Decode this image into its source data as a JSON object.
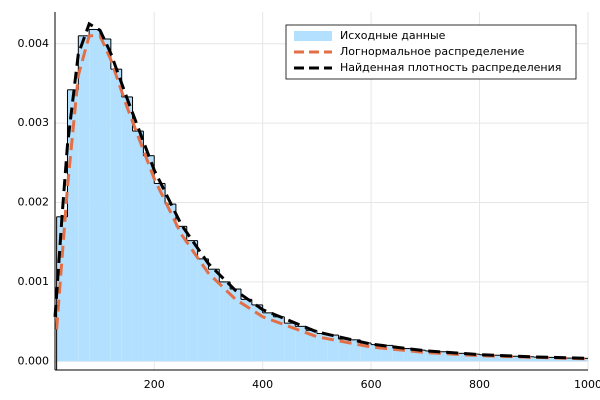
{
  "chart_data": {
    "type": "histogram",
    "name": "Исходные данные",
    "color": "#b3e0ff",
    "bins": [
      20,
      40,
      60,
      80,
      100,
      120,
      140,
      160,
      180,
      200,
      220,
      240,
      260,
      280,
      300,
      320,
      340,
      360,
      380,
      400,
      420,
      440,
      460,
      480,
      500,
      520,
      540,
      560,
      580,
      600,
      620,
      640,
      660,
      680,
      700,
      720,
      740,
      760,
      780,
      800,
      820,
      840,
      860,
      880,
      900,
      920,
      940,
      960,
      980,
      1000
    ],
    "values": [
      0.00182,
      0.00342,
      0.0041,
      0.00418,
      0.00406,
      0.00368,
      0.00333,
      0.0029,
      0.00259,
      0.00224,
      0.00198,
      0.0017,
      0.00152,
      0.00129,
      0.00116,
      0.001,
      0.00091,
      0.00078,
      0.00071,
      0.00061,
      0.00056,
      0.00048,
      0.00044,
      0.00039,
      0.00035,
      0.00033,
      0.00028,
      0.00027,
      0.00023,
      0.00021,
      0.0002,
      0.00017,
      0.00016,
      0.00014,
      0.00013,
      0.00012,
      0.00011,
      0.0001,
      9e-05,
      8.2e-05,
      7.6e-05,
      6.8e-05,
      6.3e-05,
      5.7e-05,
      5.2e-05,
      4.9e-05,
      4.4e-05,
      4e-05,
      3.7e-05
    ],
    "lines": [
      {
        "name": "Логнормальное распределение",
        "color": "#e26f46",
        "linestyle": "dashed",
        "x": [
          20,
          40,
          60,
          80,
          100,
          120,
          150,
          200,
          250,
          300,
          350,
          400,
          500,
          600,
          700,
          800,
          900,
          1000
        ],
        "values": [
          0.0004,
          0.0022,
          0.0036,
          0.0041,
          0.0041,
          0.0038,
          0.0032,
          0.0023,
          0.0016,
          0.00111,
          0.00078,
          0.00056,
          0.00031,
          0.00018,
          0.00011,
          7e-05,
          5e-05,
          3e-05
        ]
      },
      {
        "name": "Найденная плотность распределения",
        "color": "#000000",
        "linestyle": "dashed",
        "x": [
          17,
          20,
          30,
          40,
          60,
          80,
          100,
          120,
          150,
          200,
          250,
          300,
          350,
          400,
          500,
          600,
          700,
          800,
          900,
          1000
        ],
        "values": [
          0.00056,
          0.00083,
          0.00182,
          0.00273,
          0.00387,
          0.00425,
          0.00417,
          0.00388,
          0.00331,
          0.00241,
          0.00172,
          0.00123,
          0.00089,
          0.00065,
          0.00037,
          0.000216,
          0.000132,
          8.4e-05,
          5.5e-05,
          3.7e-05
        ]
      }
    ],
    "xlim": [
      17,
      1000
    ],
    "ylim": [
      -0.00011,
      0.0044
    ],
    "xticks": [
      200,
      400,
      600,
      800,
      1000
    ],
    "yticks": [
      {
        "value": 0,
        "label": "0.000"
      },
      {
        "value": 0.001,
        "label": "0.001"
      },
      {
        "value": 0.002,
        "label": "0.002"
      },
      {
        "value": 0.003,
        "label": "0.003"
      },
      {
        "value": 0.004,
        "label": "0.004"
      }
    ],
    "grid": true,
    "legend": "top-right"
  }
}
